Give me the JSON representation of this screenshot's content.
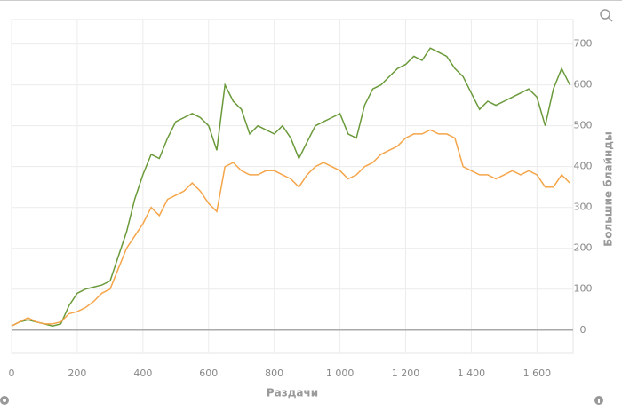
{
  "chart_data": {
    "type": "line",
    "x_label": "Раздачи",
    "y_label": "Большие блайнды",
    "x": [
      0,
      25,
      50,
      75,
      100,
      125,
      150,
      175,
      200,
      225,
      250,
      275,
      300,
      325,
      350,
      375,
      400,
      425,
      450,
      475,
      500,
      525,
      550,
      575,
      600,
      625,
      650,
      675,
      700,
      725,
      750,
      775,
      800,
      825,
      850,
      875,
      900,
      925,
      950,
      975,
      1000,
      1025,
      1050,
      1075,
      1100,
      1125,
      1150,
      1175,
      1200,
      1225,
      1250,
      1275,
      1300,
      1325,
      1350,
      1375,
      1400,
      1425,
      1450,
      1475,
      1500,
      1525,
      1550,
      1575,
      1600,
      1625,
      1650,
      1675,
      1700
    ],
    "series": [
      {
        "color": "#6a9a3a",
        "values": [
          10,
          20,
          25,
          20,
          15,
          10,
          15,
          60,
          90,
          100,
          105,
          110,
          120,
          180,
          240,
          320,
          380,
          430,
          420,
          470,
          510,
          520,
          530,
          520,
          500,
          440,
          600,
          560,
          540,
          480,
          500,
          490,
          480,
          500,
          470,
          420,
          460,
          500,
          510,
          520,
          530,
          480,
          470,
          550,
          590,
          600,
          620,
          640,
          650,
          670,
          660,
          690,
          680,
          670,
          640,
          620,
          580,
          540,
          560,
          550,
          560,
          570,
          580,
          590,
          570,
          500,
          590,
          640,
          600
        ]
      },
      {
        "color": "#f5a54a",
        "values": [
          10,
          20,
          30,
          20,
          15,
          15,
          20,
          40,
          45,
          55,
          70,
          90,
          100,
          150,
          200,
          230,
          260,
          300,
          280,
          320,
          330,
          340,
          360,
          340,
          310,
          290,
          400,
          410,
          390,
          380,
          380,
          390,
          390,
          380,
          370,
          350,
          380,
          400,
          410,
          400,
          390,
          370,
          380,
          400,
          410,
          430,
          440,
          450,
          470,
          480,
          480,
          490,
          480,
          480,
          470,
          400,
          390,
          380,
          380,
          370,
          380,
          390,
          380,
          390,
          380,
          350,
          350,
          380,
          360
        ]
      }
    ],
    "xlim": [
      0,
      1710
    ],
    "xticks": [
      0,
      200,
      400,
      600,
      800,
      {
        "value": 1000,
        "label": "1 000"
      },
      {
        "value": 1200,
        "label": "1 200"
      },
      {
        "value": 1400,
        "label": "1 400"
      },
      {
        "value": 1600,
        "label": "1 600"
      }
    ],
    "ylim": [
      -57,
      760
    ],
    "yticks": [
      0,
      100,
      200,
      300,
      400,
      500,
      600,
      700
    ],
    "grid": true,
    "zero_line": true
  }
}
